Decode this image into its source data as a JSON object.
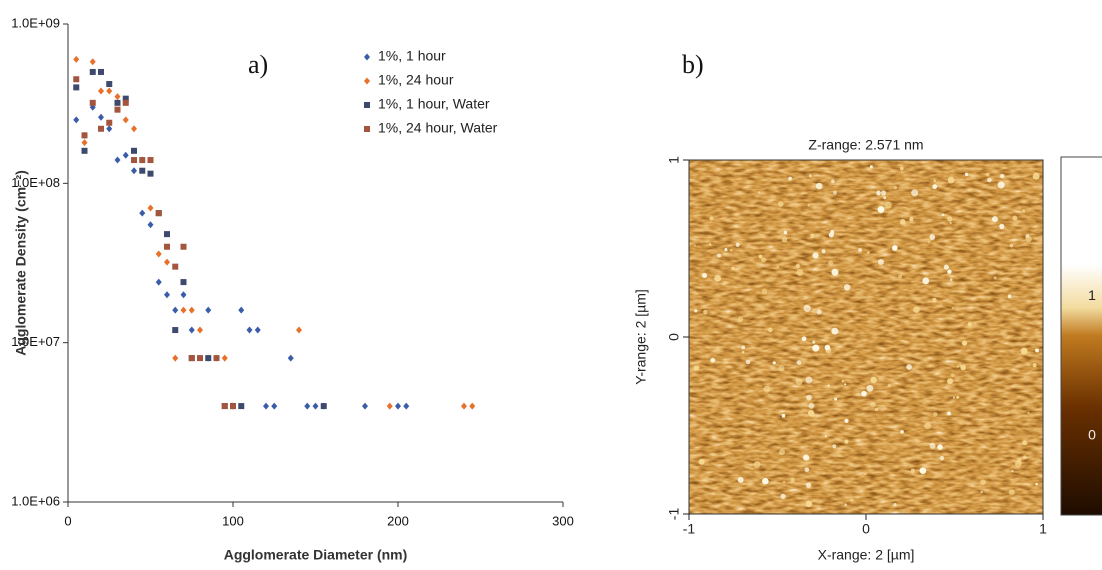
{
  "chart_data": [
    {
      "type": "scatter",
      "annotation": "a)",
      "x_label": "Agglomerate Diameter (nm)",
      "y_label": "Agglomerate Density (cm⁻²)",
      "xlim": [
        0,
        300
      ],
      "xticks": [
        0,
        100,
        200,
        300
      ],
      "ylim": [
        1000000,
        1000000000
      ],
      "log_y": true,
      "yticks": [
        {
          "value": 1000000,
          "label": "1.0E+06"
        },
        {
          "value": 10000000,
          "label": "1.0E+07"
        },
        {
          "value": 100000000,
          "label": "1.0E+08"
        },
        {
          "value": 1000000000,
          "label": "1.0E+09"
        }
      ],
      "legend": "upper right",
      "series": [
        {
          "name": "1%, 1 hour",
          "color": "#3b5ca8",
          "marker": "diamond",
          "x": [
            5,
            10,
            15,
            20,
            25,
            30,
            35,
            40,
            45,
            50,
            55,
            60,
            65,
            70,
            75,
            85,
            100,
            105,
            110,
            115,
            120,
            125,
            135,
            145,
            150,
            155,
            180,
            200,
            205
          ],
          "values": [
            250000000,
            200000000,
            300000000,
            260000000,
            220000000,
            140000000,
            150000000,
            120000000,
            65000000,
            55000000,
            24000000,
            20000000,
            16000000,
            20000000,
            12000000,
            16000000,
            4000000,
            16000000,
            12000000,
            12000000,
            4000000,
            4000000,
            8000000,
            4000000,
            4000000,
            4000000,
            4000000,
            4000000,
            4000000
          ]
        },
        {
          "name": "1%, 24 hour",
          "color": "#e8702a",
          "marker": "diamond",
          "x": [
            5,
            10,
            15,
            20,
            25,
            30,
            35,
            40,
            45,
            50,
            55,
            60,
            65,
            70,
            75,
            80,
            85,
            90,
            95,
            100,
            140,
            195,
            240,
            245
          ],
          "values": [
            600000000,
            180000000,
            580000000,
            380000000,
            380000000,
            350000000,
            250000000,
            220000000,
            140000000,
            70000000,
            36000000,
            32000000,
            8000000,
            16000000,
            16000000,
            12000000,
            8000000,
            8000000,
            8000000,
            4000000,
            12000000,
            4000000,
            4000000,
            4000000
          ]
        },
        {
          "name": "1%, 1 hour, Water",
          "color": "#3d4a6e",
          "marker": "square",
          "x": [
            5,
            10,
            15,
            20,
            25,
            30,
            35,
            40,
            45,
            50,
            55,
            60,
            65,
            70,
            75,
            85,
            95,
            100,
            105,
            155
          ],
          "values": [
            400000000,
            160000000,
            500000000,
            500000000,
            420000000,
            320000000,
            340000000,
            160000000,
            120000000,
            115000000,
            65000000,
            48000000,
            12000000,
            24000000,
            8000000,
            8000000,
            4000000,
            4000000,
            4000000,
            4000000
          ]
        },
        {
          "name": "1%, 24 hour, Water",
          "color": "#a3563d",
          "marker": "square",
          "x": [
            5,
            10,
            15,
            20,
            25,
            30,
            35,
            40,
            45,
            50,
            55,
            60,
            65,
            70,
            75,
            80,
            90,
            95,
            100
          ],
          "values": [
            450000000,
            200000000,
            320000000,
            220000000,
            240000000,
            290000000,
            320000000,
            140000000,
            140000000,
            140000000,
            65000000,
            40000000,
            30000000,
            40000000,
            8000000,
            8000000,
            8000000,
            4000000,
            4000000
          ]
        }
      ]
    },
    {
      "type": "image",
      "annotation": "b)",
      "title": "Z-range:  2.571 nm",
      "x_label": "X-range: 2 [µm]",
      "y_label": "Y-range: 2 [µm]",
      "xlim": [
        -1,
        1
      ],
      "xticks": [
        -1,
        0,
        1
      ],
      "ylim": [
        -1,
        1
      ],
      "yticks": [
        -1,
        0,
        1
      ],
      "colorbar_lim": [
        -0.57,
        2
      ],
      "colorbar_ticks": [
        0,
        1
      ]
    }
  ]
}
